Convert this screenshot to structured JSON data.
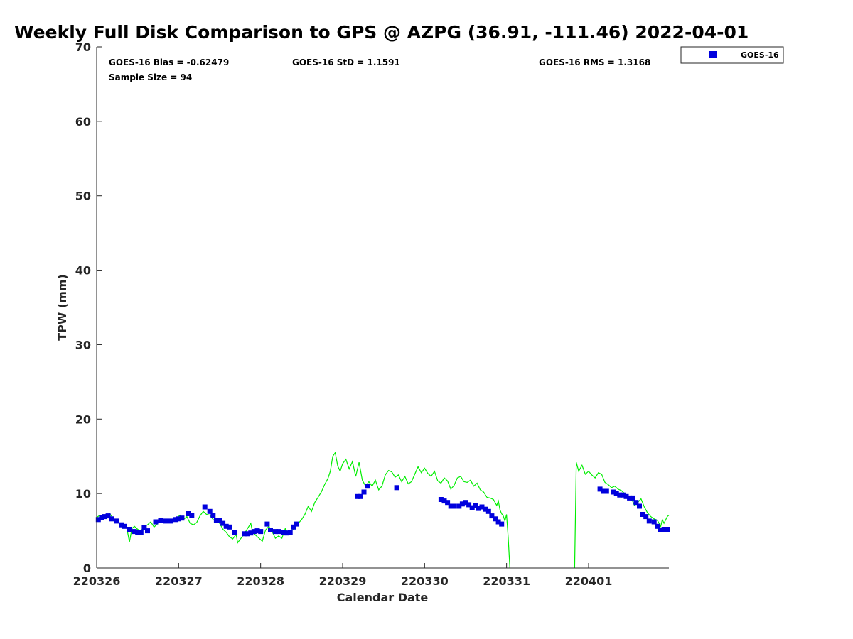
{
  "chart_data": {
    "type": "scatter",
    "title": "Weekly Full Disk Comparison to GPS @ AZPG (36.91, -111.46) 2022-04-01",
    "xlabel": "Calendar Date",
    "ylabel": "TPW (mm)",
    "xlim": [
      0,
      6.98
    ],
    "ylim": [
      0,
      70
    ],
    "x_ticks": [
      {
        "x": 0,
        "label": "220326"
      },
      {
        "x": 1,
        "label": "220327"
      },
      {
        "x": 2,
        "label": "220328"
      },
      {
        "x": 3,
        "label": "220329"
      },
      {
        "x": 4,
        "label": "220330"
      },
      {
        "x": 5,
        "label": "220331"
      },
      {
        "x": 6,
        "label": "220401"
      }
    ],
    "y_ticks": [
      {
        "y": 0,
        "label": "0"
      },
      {
        "y": 10,
        "label": "10"
      },
      {
        "y": 20,
        "label": "20"
      },
      {
        "y": 30,
        "label": "30"
      },
      {
        "y": 40,
        "label": "40"
      },
      {
        "y": 50,
        "label": "50"
      },
      {
        "y": 60,
        "label": "60"
      },
      {
        "y": 70,
        "label": "70"
      }
    ],
    "stats": {
      "bias": "GOES-16 Bias = -0.62479",
      "std": "GOES-16 StD = 1.1591",
      "rms": "GOES-16 RMS = 1.3168",
      "sample": "Sample Size = 94"
    },
    "legend": {
      "label": "GOES-16",
      "position": "top-right outside"
    },
    "colors": {
      "goes": "#0000dd",
      "gps": "#00ee00",
      "axis": "#262626"
    },
    "gps_series": {
      "name": "GPS",
      "points": [
        [
          0.0,
          6.8
        ],
        [
          0.04,
          7.1
        ],
        [
          0.08,
          6.6
        ],
        [
          0.12,
          7.0
        ],
        [
          0.16,
          7.3
        ],
        [
          0.2,
          6.7
        ],
        [
          0.24,
          6.2
        ],
        [
          0.28,
          6.0
        ],
        [
          0.32,
          5.5
        ],
        [
          0.36,
          5.8
        ],
        [
          0.4,
          3.5
        ],
        [
          0.43,
          5.3
        ],
        [
          0.46,
          5.6
        ],
        [
          0.5,
          5.2
        ],
        [
          0.54,
          5.0
        ],
        [
          0.58,
          5.6
        ],
        [
          0.62,
          5.8
        ],
        [
          0.66,
          6.2
        ],
        [
          0.7,
          5.5
        ],
        [
          0.74,
          5.9
        ],
        [
          0.78,
          6.6
        ],
        [
          0.82,
          6.2
        ],
        [
          0.86,
          6.4
        ],
        [
          0.9,
          6.1
        ],
        [
          0.94,
          6.5
        ],
        [
          0.98,
          6.8
        ],
        [
          1.02,
          7.1
        ],
        [
          1.06,
          6.5
        ],
        [
          1.1,
          6.9
        ],
        [
          1.14,
          6.0
        ],
        [
          1.18,
          5.8
        ],
        [
          1.22,
          6.1
        ],
        [
          1.26,
          7.0
        ],
        [
          1.3,
          7.6
        ],
        [
          1.34,
          7.2
        ],
        [
          1.38,
          7.1
        ],
        [
          1.42,
          6.5
        ],
        [
          1.46,
          6.3
        ],
        [
          1.5,
          6.0
        ],
        [
          1.54,
          5.2
        ],
        [
          1.58,
          4.8
        ],
        [
          1.62,
          4.2
        ],
        [
          1.66,
          3.9
        ],
        [
          1.7,
          4.5
        ],
        [
          1.72,
          3.4
        ],
        [
          1.76,
          4.0
        ],
        [
          1.8,
          4.6
        ],
        [
          1.84,
          5.3
        ],
        [
          1.88,
          6.0
        ],
        [
          1.9,
          4.9
        ],
        [
          1.94,
          4.4
        ],
        [
          1.98,
          4.0
        ],
        [
          2.02,
          3.6
        ],
        [
          2.06,
          5.1
        ],
        [
          2.1,
          5.6
        ],
        [
          2.14,
          4.9
        ],
        [
          2.18,
          4.0
        ],
        [
          2.22,
          4.3
        ],
        [
          2.26,
          4.0
        ],
        [
          2.3,
          5.3
        ],
        [
          2.34,
          4.6
        ],
        [
          2.38,
          5.0
        ],
        [
          2.42,
          5.5
        ],
        [
          2.46,
          6.0
        ],
        [
          2.5,
          6.5
        ],
        [
          2.54,
          7.2
        ],
        [
          2.58,
          8.3
        ],
        [
          2.62,
          7.6
        ],
        [
          2.66,
          8.8
        ],
        [
          2.7,
          9.5
        ],
        [
          2.74,
          10.2
        ],
        [
          2.78,
          11.2
        ],
        [
          2.82,
          12.0
        ],
        [
          2.85,
          13.0
        ],
        [
          2.88,
          15.0
        ],
        [
          2.91,
          15.5
        ],
        [
          2.94,
          13.7
        ],
        [
          2.97,
          13.0
        ],
        [
          3.0,
          14.0
        ],
        [
          3.04,
          14.6
        ],
        [
          3.08,
          13.3
        ],
        [
          3.12,
          14.3
        ],
        [
          3.16,
          12.3
        ],
        [
          3.2,
          14.2
        ],
        [
          3.24,
          11.8
        ],
        [
          3.28,
          11.0
        ],
        [
          3.32,
          11.6
        ],
        [
          3.36,
          11.0
        ],
        [
          3.4,
          11.8
        ],
        [
          3.44,
          10.5
        ],
        [
          3.48,
          11.0
        ],
        [
          3.52,
          12.5
        ],
        [
          3.56,
          13.1
        ],
        [
          3.6,
          12.9
        ],
        [
          3.64,
          12.2
        ],
        [
          3.68,
          12.5
        ],
        [
          3.72,
          11.6
        ],
        [
          3.76,
          12.3
        ],
        [
          3.8,
          11.3
        ],
        [
          3.84,
          11.6
        ],
        [
          3.88,
          12.6
        ],
        [
          3.92,
          13.6
        ],
        [
          3.96,
          12.8
        ],
        [
          4.0,
          13.4
        ],
        [
          4.04,
          12.7
        ],
        [
          4.08,
          12.3
        ],
        [
          4.12,
          13.0
        ],
        [
          4.16,
          11.7
        ],
        [
          4.2,
          11.4
        ],
        [
          4.24,
          12.1
        ],
        [
          4.28,
          11.7
        ],
        [
          4.32,
          10.6
        ],
        [
          4.36,
          11.1
        ],
        [
          4.4,
          12.1
        ],
        [
          4.44,
          12.3
        ],
        [
          4.48,
          11.6
        ],
        [
          4.52,
          11.5
        ],
        [
          4.56,
          11.8
        ],
        [
          4.6,
          11.0
        ],
        [
          4.64,
          11.4
        ],
        [
          4.68,
          10.5
        ],
        [
          4.72,
          10.2
        ],
        [
          4.76,
          9.5
        ],
        [
          4.8,
          9.4
        ],
        [
          4.84,
          9.2
        ],
        [
          4.88,
          8.4
        ],
        [
          4.9,
          9.0
        ],
        [
          4.92,
          7.8
        ],
        [
          4.94,
          7.3
        ],
        [
          4.96,
          7.0
        ],
        [
          4.98,
          6.3
        ],
        [
          5.0,
          7.2
        ],
        [
          5.02,
          4.0
        ],
        [
          5.04,
          0.0
        ]
      ],
      "points_b": [
        [
          5.83,
          0.0
        ],
        [
          5.85,
          14.2
        ],
        [
          5.88,
          13.0
        ],
        [
          5.92,
          13.8
        ],
        [
          5.96,
          12.6
        ],
        [
          6.0,
          13.0
        ],
        [
          6.04,
          12.5
        ],
        [
          6.08,
          12.1
        ],
        [
          6.12,
          12.8
        ],
        [
          6.16,
          12.6
        ],
        [
          6.2,
          11.5
        ],
        [
          6.24,
          11.2
        ],
        [
          6.28,
          10.8
        ],
        [
          6.32,
          11.0
        ],
        [
          6.36,
          10.6
        ],
        [
          6.4,
          10.4
        ],
        [
          6.44,
          10.0
        ],
        [
          6.48,
          9.6
        ],
        [
          6.52,
          9.4
        ],
        [
          6.56,
          8.4
        ],
        [
          6.6,
          8.8
        ],
        [
          6.64,
          9.3
        ],
        [
          6.68,
          8.2
        ],
        [
          6.72,
          7.4
        ],
        [
          6.76,
          6.9
        ],
        [
          6.8,
          6.6
        ],
        [
          6.84,
          6.4
        ],
        [
          6.88,
          5.6
        ],
        [
          6.9,
          6.5
        ],
        [
          6.92,
          6.0
        ],
        [
          6.96,
          6.9
        ],
        [
          6.98,
          7.1
        ]
      ]
    },
    "goes_series": {
      "name": "GOES-16",
      "points": [
        [
          0.02,
          6.5
        ],
        [
          0.06,
          6.8
        ],
        [
          0.1,
          6.9
        ],
        [
          0.14,
          7.0
        ],
        [
          0.18,
          6.6
        ],
        [
          0.24,
          6.3
        ],
        [
          0.3,
          5.8
        ],
        [
          0.34,
          5.6
        ],
        [
          0.4,
          5.2
        ],
        [
          0.46,
          4.9
        ],
        [
          0.5,
          4.8
        ],
        [
          0.54,
          4.8
        ],
        [
          0.58,
          5.4
        ],
        [
          0.62,
          5.0
        ],
        [
          0.72,
          6.2
        ],
        [
          0.78,
          6.4
        ],
        [
          0.84,
          6.3
        ],
        [
          0.9,
          6.3
        ],
        [
          0.96,
          6.5
        ],
        [
          1.0,
          6.6
        ],
        [
          1.04,
          6.7
        ],
        [
          1.12,
          7.3
        ],
        [
          1.16,
          7.1
        ],
        [
          1.32,
          8.2
        ],
        [
          1.38,
          7.6
        ],
        [
          1.42,
          7.1
        ],
        [
          1.46,
          6.4
        ],
        [
          1.5,
          6.4
        ],
        [
          1.54,
          6.0
        ],
        [
          1.58,
          5.6
        ],
        [
          1.62,
          5.5
        ],
        [
          1.68,
          4.8
        ],
        [
          1.8,
          4.6
        ],
        [
          1.84,
          4.6
        ],
        [
          1.88,
          4.7
        ],
        [
          1.92,
          4.9
        ],
        [
          1.96,
          5.0
        ],
        [
          2.0,
          4.9
        ],
        [
          2.08,
          5.9
        ],
        [
          2.12,
          5.1
        ],
        [
          2.18,
          4.9
        ],
        [
          2.22,
          4.9
        ],
        [
          2.28,
          4.8
        ],
        [
          2.32,
          4.7
        ],
        [
          2.36,
          4.8
        ],
        [
          2.4,
          5.5
        ],
        [
          2.44,
          5.9
        ],
        [
          3.18,
          9.6
        ],
        [
          3.22,
          9.6
        ],
        [
          3.26,
          10.2
        ],
        [
          3.3,
          11.0
        ],
        [
          3.66,
          10.8
        ],
        [
          4.2,
          9.2
        ],
        [
          4.24,
          9.0
        ],
        [
          4.28,
          8.8
        ],
        [
          4.32,
          8.3
        ],
        [
          4.36,
          8.3
        ],
        [
          4.42,
          8.3
        ],
        [
          4.46,
          8.6
        ],
        [
          4.5,
          8.8
        ],
        [
          4.54,
          8.5
        ],
        [
          4.58,
          8.1
        ],
        [
          4.62,
          8.4
        ],
        [
          4.66,
          8.0
        ],
        [
          4.7,
          8.2
        ],
        [
          4.74,
          7.9
        ],
        [
          4.78,
          7.6
        ],
        [
          4.82,
          7.0
        ],
        [
          4.86,
          6.6
        ],
        [
          4.9,
          6.2
        ],
        [
          4.94,
          5.9
        ],
        [
          6.14,
          10.6
        ],
        [
          6.18,
          10.3
        ],
        [
          6.22,
          10.3
        ],
        [
          6.3,
          10.2
        ],
        [
          6.34,
          10.0
        ],
        [
          6.38,
          9.8
        ],
        [
          6.42,
          9.8
        ],
        [
          6.46,
          9.6
        ],
        [
          6.5,
          9.4
        ],
        [
          6.54,
          9.4
        ],
        [
          6.58,
          8.8
        ],
        [
          6.62,
          8.3
        ],
        [
          6.66,
          7.2
        ],
        [
          6.7,
          6.9
        ],
        [
          6.74,
          6.3
        ],
        [
          6.8,
          6.2
        ],
        [
          6.84,
          5.6
        ],
        [
          6.88,
          5.1
        ],
        [
          6.92,
          5.2
        ],
        [
          6.96,
          5.2
        ]
      ]
    }
  }
}
